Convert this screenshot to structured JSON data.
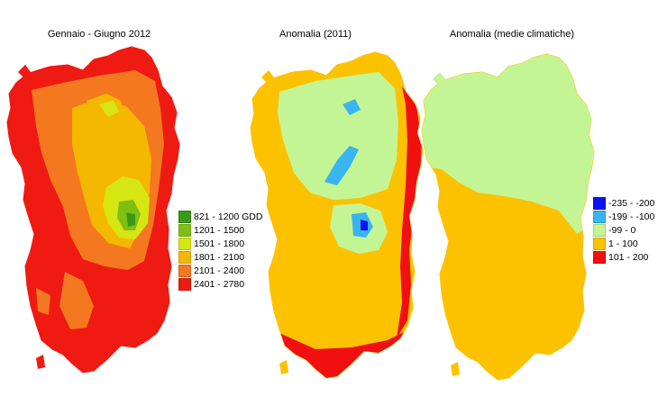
{
  "panels": [
    {
      "title": "Gennaio - Giugno 2012"
    },
    {
      "title": "Anomalia (2011)"
    },
    {
      "title": "Anomalia (medie climatiche)"
    }
  ],
  "legend_gdd": {
    "items": [
      {
        "label": "821 - 1200 GDD",
        "color": "#3a9a16"
      },
      {
        "label": "1201 - 1500",
        "color": "#7fbf14"
      },
      {
        "label": "1501 - 1800",
        "color": "#d6e612"
      },
      {
        "label": "1801 - 2100",
        "color": "#f4b800"
      },
      {
        "label": "2101 - 2400",
        "color": "#f47820"
      },
      {
        "label": "2401 - 2780",
        "color": "#ef1a12"
      }
    ]
  },
  "legend_anomaly": {
    "items": [
      {
        "label": "-235 - -200",
        "color": "#0a14f0"
      },
      {
        "label": "-199 - -100",
        "color": "#3ab4f0"
      },
      {
        "label": "-99 - 0",
        "color": "#c4f594"
      },
      {
        "label": "1 - 100",
        "color": "#fcc200"
      },
      {
        "label": "101 - 200",
        "color": "#f01010"
      }
    ]
  }
}
